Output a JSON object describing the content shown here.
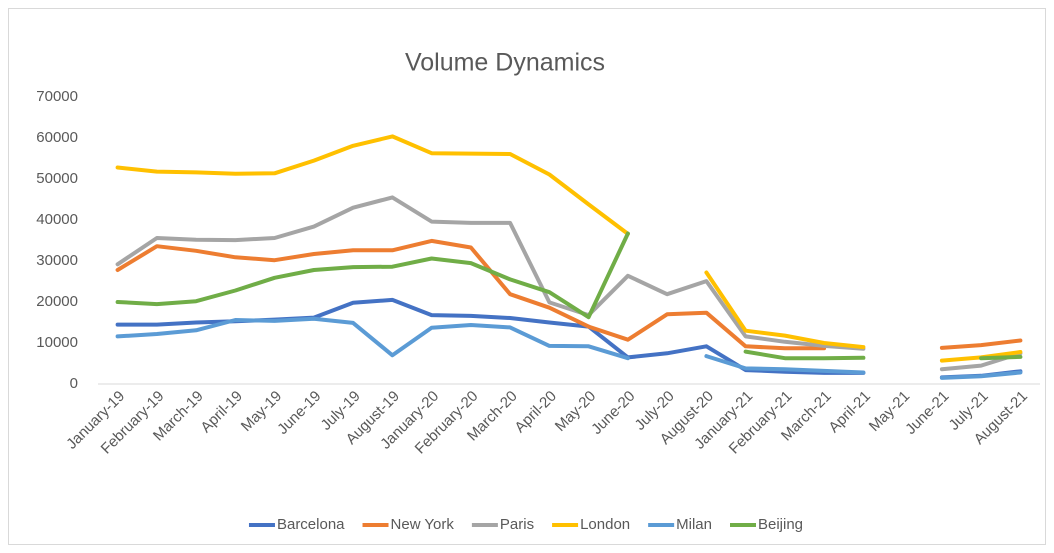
{
  "chart_data": {
    "type": "line",
    "title": "Volume Dynamics",
    "categories": [
      "January-19",
      "February-19",
      "March-19",
      "April-19",
      "May-19",
      "June-19",
      "July-19",
      "August-19",
      "January-20",
      "February-20",
      "March-20",
      "April-20",
      "May-20",
      "June-20",
      "July-20",
      "August-20",
      "January-21",
      "February-21",
      "March-21",
      "April-21",
      "May-21",
      "June-21",
      "July-21",
      "August-21"
    ],
    "ylim": [
      0,
      70000
    ],
    "yticks": [
      0,
      10000,
      20000,
      30000,
      40000,
      50000,
      60000,
      70000
    ],
    "grid": false,
    "legend": "bottom",
    "series": [
      {
        "name": "Barcelona",
        "color": "#4472c4",
        "values": [
          14500,
          14500,
          15000,
          15300,
          15700,
          16200,
          19800,
          20500,
          16800,
          16600,
          16100,
          15000,
          14000,
          6500,
          7500,
          9200,
          3400,
          3000,
          2700,
          2700,
          null,
          1600,
          2000,
          3100
        ]
      },
      {
        "name": "New York",
        "color": "#ed7d31",
        "values": [
          27800,
          33600,
          32500,
          30900,
          30200,
          31700,
          32600,
          32600,
          34900,
          33300,
          21900,
          18600,
          14000,
          10800,
          17000,
          17400,
          9200,
          8700,
          8700,
          null,
          null,
          8800,
          9500,
          10600
        ]
      },
      {
        "name": "Paris",
        "color": "#a5a5a5",
        "values": [
          29200,
          35600,
          35200,
          35100,
          35600,
          38400,
          43000,
          45500,
          39600,
          39300,
          39300,
          19900,
          16800,
          26400,
          21900,
          25100,
          11600,
          10300,
          9300,
          8600,
          null,
          3600,
          4500,
          7500
        ]
      },
      {
        "name": "London",
        "color": "#ffc000",
        "values": [
          52800,
          51800,
          51600,
          51300,
          51400,
          54500,
          58100,
          60400,
          56300,
          56200,
          56100,
          51100,
          43800,
          36600,
          null,
          27200,
          13000,
          11800,
          10000,
          9000,
          null,
          5700,
          6500,
          7800
        ]
      },
      {
        "name": "Milan",
        "color": "#5b9bd5",
        "values": [
          11600,
          12200,
          13100,
          15600,
          15400,
          15900,
          14900,
          7000,
          13700,
          14400,
          13800,
          9300,
          9200,
          6300,
          null,
          6800,
          3800,
          3600,
          3200,
          2800,
          null,
          1500,
          1900,
          2800
        ]
      },
      {
        "name": "Beijing",
        "color": "#70ad47",
        "values": [
          20000,
          19500,
          20200,
          22800,
          25900,
          27800,
          28500,
          28600,
          30600,
          29500,
          25500,
          22400,
          16300,
          36700,
          null,
          null,
          7900,
          6300,
          6300,
          6400,
          null,
          null,
          6300,
          6600
        ]
      }
    ]
  }
}
